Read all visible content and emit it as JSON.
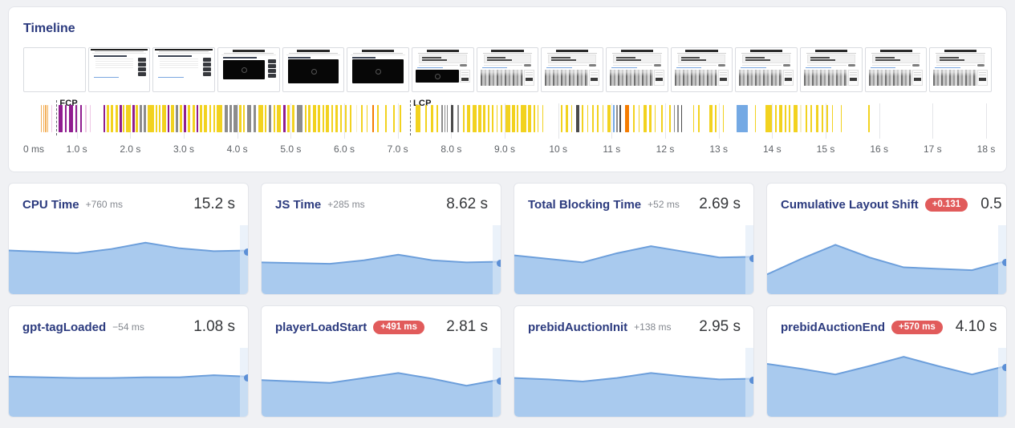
{
  "timeline": {
    "title": "Timeline",
    "fcp_label": "FCP",
    "lcp_label": "LCP",
    "fcp_s": 0.62,
    "lcp_s": 7.23,
    "axis_ticks": [
      "0 ms",
      "1.0 s",
      "2.0 s",
      "3.0 s",
      "4.0 s",
      "5.0 s",
      "6.0 s",
      "7.0 s",
      "8.0 s",
      "9.0 s",
      "10 s",
      "11 s",
      "12 s",
      "13 s",
      "14 s",
      "15 s",
      "16 s",
      "17 s",
      "18 s"
    ],
    "filmstrip_stages": [
      "blank",
      "article",
      "article",
      "video-article",
      "video",
      "video",
      "video-late",
      "photo",
      "photo",
      "photo",
      "photo",
      "photo",
      "photo",
      "photo",
      "photo"
    ],
    "bar_colors": {
      "y": "#f2d21f",
      "p": "#8f1d8f",
      "g": "#8c8c8c",
      "d": "#4a4a4a",
      "o": "#f57c00",
      "ol": "#f3b05a",
      "pk": "#eec7e4",
      "c": "#f7eec5",
      "b": "#74a9e4"
    },
    "bars": [
      [
        0.33,
        0.02,
        "ol"
      ],
      [
        0.37,
        0.02,
        "ol"
      ],
      [
        0.41,
        0.02,
        "ol"
      ],
      [
        0.45,
        0.02,
        "ol"
      ],
      [
        0.52,
        0.02,
        "pk"
      ],
      [
        0.66,
        0.08,
        "p"
      ],
      [
        0.78,
        0.03,
        "p"
      ],
      [
        0.86,
        0.07,
        "p"
      ],
      [
        0.97,
        0.03,
        "p"
      ],
      [
        1.06,
        0.04,
        "p"
      ],
      [
        1.16,
        0.02,
        "pk"
      ],
      [
        1.24,
        0.02,
        "pk"
      ],
      [
        1.5,
        0.03,
        "p"
      ],
      [
        1.56,
        0.05,
        "y"
      ],
      [
        1.64,
        0.04,
        "y"
      ],
      [
        1.72,
        0.05,
        "y"
      ],
      [
        1.8,
        0.04,
        "p"
      ],
      [
        1.86,
        0.03,
        "y"
      ],
      [
        1.92,
        0.09,
        "y"
      ],
      [
        2.04,
        0.04,
        "p"
      ],
      [
        2.1,
        0.05,
        "y"
      ],
      [
        2.18,
        0.04,
        "g"
      ],
      [
        2.25,
        0.05,
        "g"
      ],
      [
        2.33,
        0.11,
        "y"
      ],
      [
        2.47,
        0.03,
        "y"
      ],
      [
        2.53,
        0.04,
        "y"
      ],
      [
        2.6,
        0.07,
        "y"
      ],
      [
        2.7,
        0.03,
        "p"
      ],
      [
        2.76,
        0.06,
        "y"
      ],
      [
        2.85,
        0.04,
        "g"
      ],
      [
        2.92,
        0.05,
        "y"
      ],
      [
        3.0,
        0.05,
        "p"
      ],
      [
        3.08,
        0.04,
        "y"
      ],
      [
        3.16,
        0.05,
        "y"
      ],
      [
        3.24,
        0.03,
        "p"
      ],
      [
        3.3,
        0.04,
        "y"
      ],
      [
        3.38,
        0.06,
        "y"
      ],
      [
        3.48,
        0.03,
        "y"
      ],
      [
        3.56,
        0.02,
        "y"
      ],
      [
        3.62,
        0.1,
        "y"
      ],
      [
        3.76,
        0.06,
        "g"
      ],
      [
        3.85,
        0.05,
        "g"
      ],
      [
        3.93,
        0.07,
        "g"
      ],
      [
        4.04,
        0.04,
        "y"
      ],
      [
        4.11,
        0.03,
        "y"
      ],
      [
        4.18,
        0.08,
        "g"
      ],
      [
        4.3,
        0.05,
        "g"
      ],
      [
        4.4,
        0.08,
        "y"
      ],
      [
        4.51,
        0.04,
        "y"
      ],
      [
        4.59,
        0.05,
        "g"
      ],
      [
        4.68,
        0.03,
        "y"
      ],
      [
        4.74,
        0.08,
        "y"
      ],
      [
        4.86,
        0.05,
        "p"
      ],
      [
        4.94,
        0.04,
        "y"
      ],
      [
        5.02,
        0.05,
        "y"
      ],
      [
        5.12,
        0.1,
        "g"
      ],
      [
        5.27,
        0.03,
        "y"
      ],
      [
        5.33,
        0.04,
        "y"
      ],
      [
        5.41,
        0.06,
        "y"
      ],
      [
        5.51,
        0.04,
        "y"
      ],
      [
        5.59,
        0.03,
        "y"
      ],
      [
        5.66,
        0.05,
        "y"
      ],
      [
        5.76,
        0.03,
        "y"
      ],
      [
        5.84,
        0.04,
        "y"
      ],
      [
        5.92,
        0.03,
        "y"
      ],
      [
        6.01,
        0.04,
        "y"
      ],
      [
        6.1,
        0.03,
        "y"
      ],
      [
        6.22,
        0.02,
        "c"
      ],
      [
        6.32,
        0.03,
        "y"
      ],
      [
        6.42,
        0.02,
        "y"
      ],
      [
        6.52,
        0.03,
        "o"
      ],
      [
        6.62,
        0.02,
        "y"
      ],
      [
        6.76,
        0.04,
        "y"
      ],
      [
        6.92,
        0.03,
        "y"
      ],
      [
        7.04,
        0.02,
        "y"
      ],
      [
        7.33,
        0.1,
        "y"
      ],
      [
        7.52,
        0.03,
        "y"
      ],
      [
        7.62,
        0.04,
        "y"
      ],
      [
        7.72,
        0.03,
        "y"
      ],
      [
        7.82,
        0.02,
        "g"
      ],
      [
        7.87,
        0.02,
        "g"
      ],
      [
        7.92,
        0.02,
        "g"
      ],
      [
        8.0,
        0.04,
        "d"
      ],
      [
        8.12,
        0.03,
        "g"
      ],
      [
        8.22,
        0.03,
        "y"
      ],
      [
        8.3,
        0.05,
        "y"
      ],
      [
        8.4,
        0.08,
        "y"
      ],
      [
        8.51,
        0.06,
        "y"
      ],
      [
        8.6,
        0.04,
        "y"
      ],
      [
        8.68,
        0.03,
        "y"
      ],
      [
        8.76,
        0.03,
        "y"
      ],
      [
        8.85,
        0.02,
        "y"
      ],
      [
        8.92,
        0.03,
        "y"
      ],
      [
        9.02,
        0.08,
        "y"
      ],
      [
        9.13,
        0.06,
        "y"
      ],
      [
        9.22,
        0.04,
        "y"
      ],
      [
        9.3,
        0.1,
        "y"
      ],
      [
        9.44,
        0.05,
        "y"
      ],
      [
        9.54,
        0.03,
        "y"
      ],
      [
        9.61,
        0.02,
        "y"
      ],
      [
        9.7,
        0.02,
        "y"
      ],
      [
        10.05,
        0.03,
        "y"
      ],
      [
        10.14,
        0.04,
        "y"
      ],
      [
        10.24,
        0.02,
        "y"
      ],
      [
        10.34,
        0.05,
        "d"
      ],
      [
        10.44,
        0.03,
        "y"
      ],
      [
        10.54,
        0.02,
        "y"
      ],
      [
        10.63,
        0.04,
        "y"
      ],
      [
        10.73,
        0.03,
        "y"
      ],
      [
        10.83,
        0.02,
        "y"
      ],
      [
        10.92,
        0.06,
        "y"
      ],
      [
        11.03,
        0.02,
        "b"
      ],
      [
        11.09,
        0.02,
        "g"
      ],
      [
        11.15,
        0.02,
        "d"
      ],
      [
        11.25,
        0.08,
        "o"
      ],
      [
        11.4,
        0.03,
        "y"
      ],
      [
        11.5,
        0.02,
        "y"
      ],
      [
        11.6,
        0.05,
        "y"
      ],
      [
        11.7,
        0.04,
        "y"
      ],
      [
        11.8,
        0.02,
        "y"
      ],
      [
        11.93,
        0.02,
        "y"
      ],
      [
        12.08,
        0.02,
        "y"
      ],
      [
        12.16,
        0.02,
        "g"
      ],
      [
        12.23,
        0.02,
        "g"
      ],
      [
        12.3,
        0.02,
        "d"
      ],
      [
        12.52,
        0.02,
        "y"
      ],
      [
        12.62,
        0.03,
        "y"
      ],
      [
        12.82,
        0.06,
        "y"
      ],
      [
        12.93,
        0.03,
        "y"
      ],
      [
        13.08,
        0.02,
        "y"
      ],
      [
        13.33,
        0.22,
        "b"
      ],
      [
        13.68,
        0.02,
        "y"
      ],
      [
        13.88,
        0.12,
        "y"
      ],
      [
        14.06,
        0.03,
        "y"
      ],
      [
        14.13,
        0.06,
        "y"
      ],
      [
        14.23,
        0.04,
        "y"
      ],
      [
        14.31,
        0.03,
        "y"
      ],
      [
        14.4,
        0.08,
        "y"
      ],
      [
        14.52,
        0.03,
        "c"
      ],
      [
        14.62,
        0.04,
        "y"
      ],
      [
        14.72,
        0.03,
        "y"
      ],
      [
        14.82,
        0.04,
        "y"
      ],
      [
        14.92,
        0.03,
        "y"
      ],
      [
        15.02,
        0.03,
        "y"
      ],
      [
        15.12,
        0.02,
        "y"
      ],
      [
        15.28,
        0.02,
        "y"
      ],
      [
        15.8,
        0.02,
        "y"
      ]
    ]
  },
  "cards": [
    {
      "title": "CPU Time",
      "delta": "+760 ms",
      "delta_badge": false,
      "value": "15.2 s",
      "spark": [
        0.62,
        0.6,
        0.58,
        0.64,
        0.73,
        0.65,
        0.61,
        0.62
      ]
    },
    {
      "title": "JS Time",
      "delta": "+285 ms",
      "delta_badge": false,
      "value": "8.62 s",
      "spark": [
        0.45,
        0.44,
        0.43,
        0.48,
        0.56,
        0.48,
        0.45,
        0.46
      ]
    },
    {
      "title": "Total Blocking Time",
      "delta": "+52 ms",
      "delta_badge": false,
      "value": "2.69 s",
      "spark": [
        0.55,
        0.5,
        0.45,
        0.58,
        0.68,
        0.6,
        0.52,
        0.53
      ]
    },
    {
      "title": "Cumulative Layout Shift",
      "delta": "+0.131",
      "delta_badge": true,
      "value": "0.5",
      "spark": [
        0.28,
        0.5,
        0.7,
        0.52,
        0.38,
        0.36,
        0.34,
        0.47
      ]
    },
    {
      "title": "gpt-tagLoaded",
      "delta": "−54 ms",
      "delta_badge": false,
      "value": "1.08 s",
      "spark": [
        0.57,
        0.56,
        0.55,
        0.55,
        0.56,
        0.56,
        0.59,
        0.57
      ]
    },
    {
      "title": "playerLoadStart",
      "delta": "+491 ms",
      "delta_badge": true,
      "value": "2.81 s",
      "spark": [
        0.52,
        0.5,
        0.48,
        0.55,
        0.62,
        0.54,
        0.44,
        0.53
      ]
    },
    {
      "title": "prebidAuctionInit",
      "delta": "+138 ms",
      "delta_badge": false,
      "value": "2.95 s",
      "spark": [
        0.55,
        0.53,
        0.5,
        0.55,
        0.62,
        0.57,
        0.53,
        0.54
      ]
    },
    {
      "title": "prebidAuctionEnd",
      "delta": "+570 ms",
      "delta_badge": true,
      "value": "4.10 s",
      "spark": [
        0.75,
        0.68,
        0.6,
        0.72,
        0.85,
        0.72,
        0.6,
        0.72
      ]
    }
  ],
  "colors": {
    "spark_fill": "#a9caee",
    "spark_line": "#6d9fdb",
    "spark_dot": "#5b8fd6",
    "badge_bg": "#e15b5b",
    "title_navy": "#2b3a7e"
  }
}
